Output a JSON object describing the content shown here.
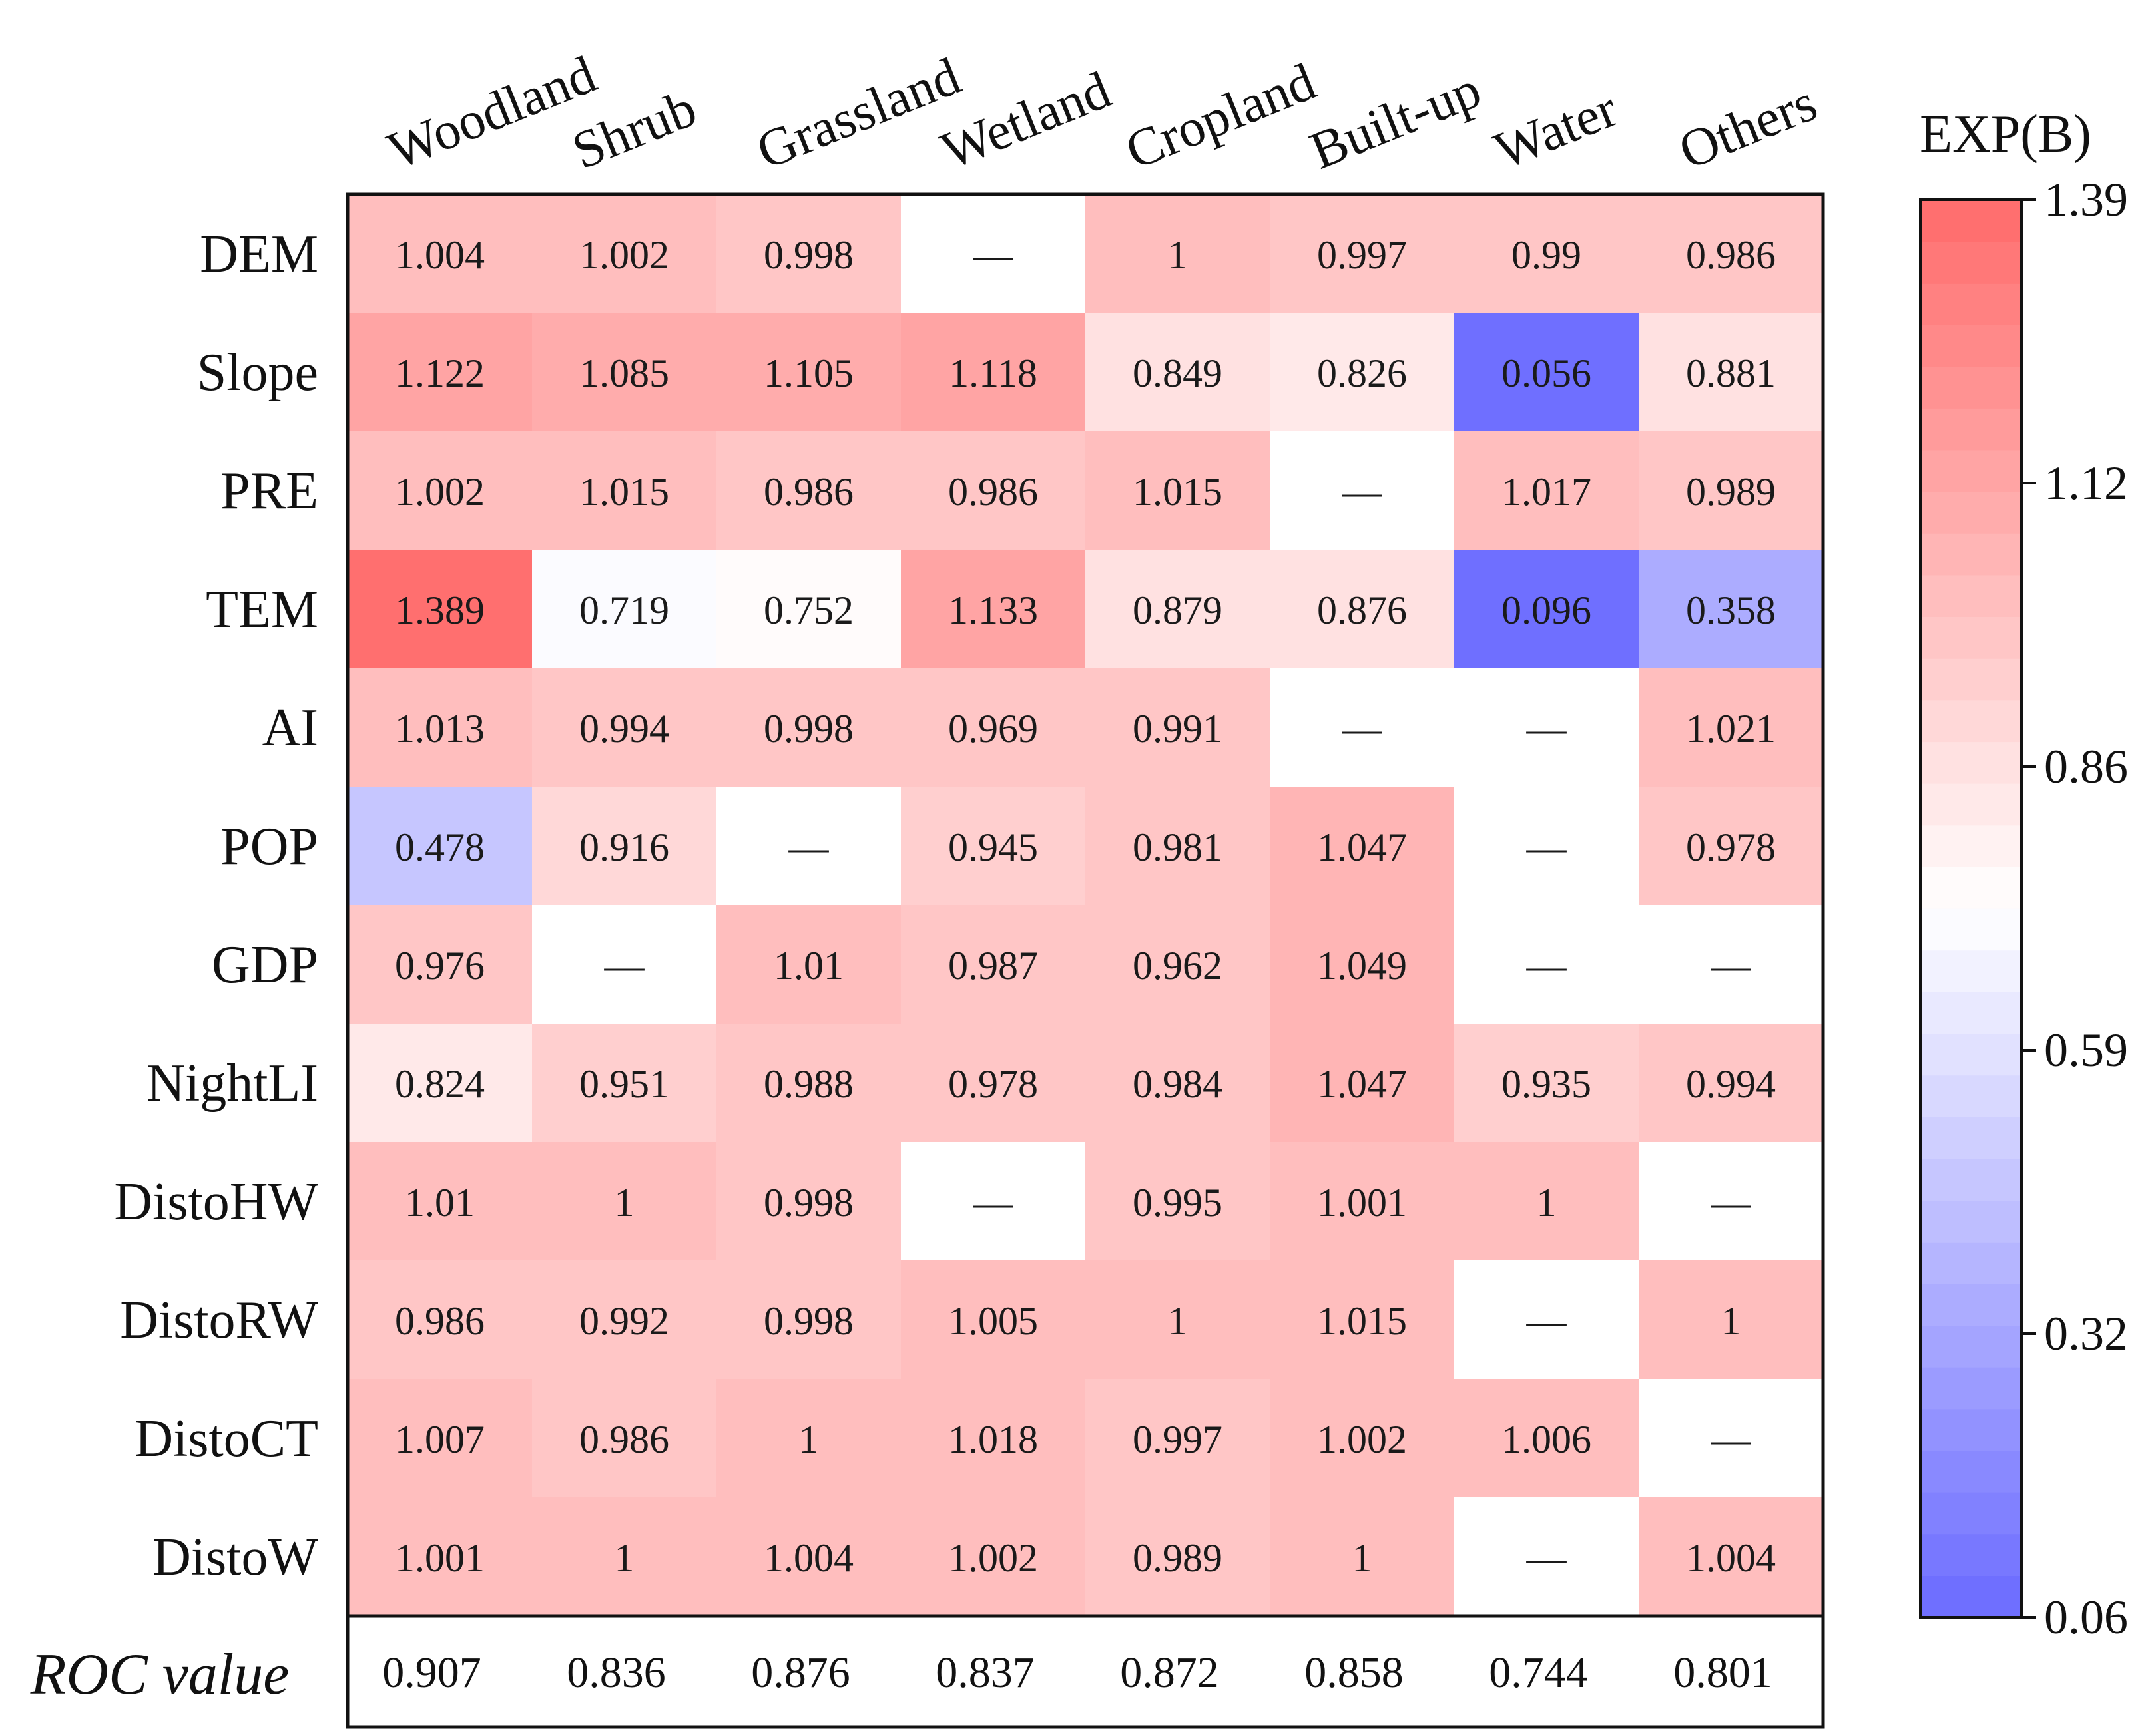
{
  "chart_data": {
    "type": "heatmap",
    "columns": [
      "Woodland",
      "Shrub",
      "Grassland",
      "Wetland",
      "Cropland",
      "Built-up",
      "Water",
      "Others"
    ],
    "rows": [
      "DEM",
      "Slope",
      "PRE",
      "TEM",
      "AI",
      "POP",
      "GDP",
      "NightLI",
      "DistoHW",
      "DistoRW",
      "DistoCT",
      "DistoW"
    ],
    "values": [
      [
        1.004,
        1.002,
        0.998,
        null,
        1,
        0.997,
        0.99,
        0.986
      ],
      [
        1.122,
        1.085,
        1.105,
        1.118,
        0.849,
        0.826,
        0.056,
        0.881
      ],
      [
        1.002,
        1.015,
        0.986,
        0.986,
        1.015,
        null,
        1.017,
        0.989
      ],
      [
        1.389,
        0.719,
        0.752,
        1.133,
        0.879,
        0.876,
        0.096,
        0.358
      ],
      [
        1.013,
        0.994,
        0.998,
        0.969,
        0.991,
        null,
        null,
        1.021
      ],
      [
        0.478,
        0.916,
        null,
        0.945,
        0.981,
        1.047,
        null,
        0.978
      ],
      [
        0.976,
        null,
        1.01,
        0.987,
        0.962,
        1.049,
        null,
        null
      ],
      [
        0.824,
        0.951,
        0.988,
        0.978,
        0.984,
        1.047,
        0.935,
        0.994
      ],
      [
        1.01,
        1,
        0.998,
        null,
        0.995,
        1.001,
        1,
        null
      ],
      [
        0.986,
        0.992,
        0.998,
        1.005,
        1,
        1.015,
        null,
        1
      ],
      [
        1.007,
        0.986,
        1,
        1.018,
        0.997,
        1.002,
        1.006,
        null
      ],
      [
        1.001,
        1,
        1.004,
        1.002,
        0.989,
        1,
        null,
        1.004
      ]
    ],
    "missing_symbol": "—",
    "roc_label": "ROC value",
    "roc_values": [
      "0.907",
      "0.836",
      "0.876",
      "0.837",
      "0.872",
      "0.858",
      "0.744",
      "0.801"
    ],
    "colorbar": {
      "title": "EXP(B)",
      "range": [
        0.06,
        1.39
      ],
      "ticks": [
        "1.39",
        "1.12",
        "0.86",
        "0.59",
        "0.32",
        "0.06"
      ],
      "low_color": "#6b6bff",
      "mid_color": "#ffffff",
      "high_color": "#ff6b6b",
      "steps": 34
    }
  }
}
